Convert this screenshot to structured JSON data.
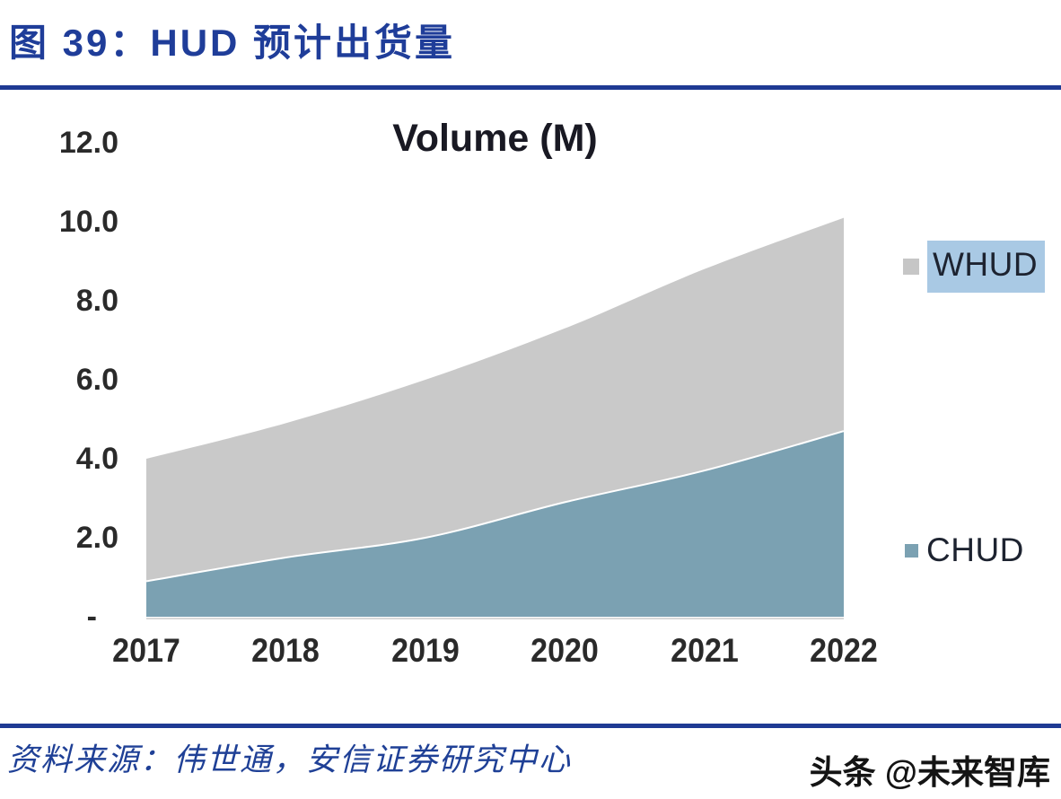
{
  "header": {
    "title": "图 39：HUD 预计出货量"
  },
  "chart_data": {
    "type": "area",
    "stacked": true,
    "smooth": true,
    "title": "Volume (M)",
    "categories": [
      "2017",
      "2018",
      "2019",
      "2020",
      "2021",
      "2022"
    ],
    "series": [
      {
        "name": "CHUD",
        "values": [
          0.9,
          1.5,
          2.0,
          2.9,
          3.7,
          4.7
        ],
        "color": "#7ba1b2"
      },
      {
        "name": "WHUD",
        "values": [
          3.1,
          3.4,
          4.0,
          4.4,
          5.1,
          5.4
        ],
        "color": "#c9c9c9"
      }
    ],
    "ylim": [
      0,
      12
    ],
    "ytick_values": [
      12,
      10,
      8,
      6,
      4,
      2,
      0
    ],
    "ytick_labels": [
      "12.0",
      "10.0",
      "8.0",
      "6.0",
      "4.0",
      "2.0",
      "-"
    ],
    "grid": false,
    "legend_position": "right",
    "legend_highlight_color": "#a9c9e4",
    "baseline_color": "#d9d9d9",
    "separator_color": "#1f3a93"
  },
  "footer": {
    "source": "资料来源：伟世通，安信证券研究中心",
    "watermark": "头条 @未来智库"
  }
}
